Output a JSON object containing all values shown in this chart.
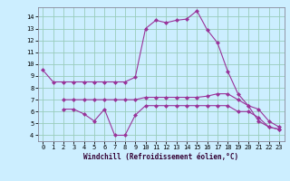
{
  "xlabel": "Windchill (Refroidissement éolien,°C)",
  "background_color": "#cceeff",
  "line_color": "#993399",
  "grid_color": "#99ccbb",
  "xlim": [
    -0.5,
    23.5
  ],
  "ylim": [
    3.5,
    14.8
  ],
  "yticks": [
    4,
    5,
    6,
    7,
    8,
    9,
    10,
    11,
    12,
    13,
    14
  ],
  "xticks": [
    0,
    1,
    2,
    3,
    4,
    5,
    6,
    7,
    8,
    9,
    10,
    11,
    12,
    13,
    14,
    15,
    16,
    17,
    18,
    19,
    20,
    21,
    22,
    23
  ],
  "line1_x": [
    0,
    1,
    2,
    3,
    4,
    5,
    6,
    7,
    8,
    9,
    10,
    11,
    12,
    13,
    14,
    15,
    16,
    17,
    18,
    19,
    20,
    21,
    22,
    23
  ],
  "line1_y": [
    9.5,
    8.5,
    8.5,
    8.5,
    8.5,
    8.5,
    8.5,
    8.5,
    8.5,
    8.9,
    13.0,
    13.7,
    13.5,
    13.7,
    13.8,
    14.5,
    12.9,
    11.8,
    9.4,
    7.5,
    6.5,
    5.2,
    4.7,
    4.5
  ],
  "line2_x": [
    2,
    3,
    4,
    5,
    6,
    7,
    8,
    9,
    10,
    11,
    12,
    13,
    14,
    15,
    16,
    17,
    18,
    19,
    20,
    21,
    22,
    23
  ],
  "line2_y": [
    7.0,
    7.0,
    7.0,
    7.0,
    7.0,
    7.0,
    7.0,
    7.0,
    7.2,
    7.2,
    7.2,
    7.2,
    7.2,
    7.2,
    7.3,
    7.5,
    7.5,
    7.0,
    6.5,
    6.2,
    5.2,
    4.7
  ],
  "line3_x": [
    2,
    3,
    4,
    5,
    6,
    7,
    8,
    9,
    10,
    11,
    12,
    13,
    14,
    15,
    16,
    17,
    18,
    19,
    20,
    21,
    22,
    23
  ],
  "line3_y": [
    6.2,
    6.2,
    5.8,
    5.2,
    6.2,
    4.0,
    4.0,
    5.7,
    6.5,
    6.5,
    6.5,
    6.5,
    6.5,
    6.5,
    6.5,
    6.5,
    6.5,
    6.0,
    6.0,
    5.5,
    4.7,
    4.5
  ],
  "tick_fontsize": 5,
  "xlabel_fontsize": 5.5,
  "marker_size": 2.5,
  "line_width": 0.8
}
